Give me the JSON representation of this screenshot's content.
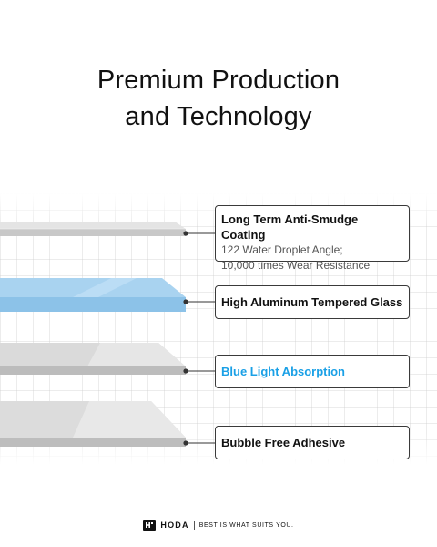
{
  "header": {
    "title_line1": "Premium Production",
    "title_line2": "and Technology"
  },
  "layers": [
    {
      "id": "anti-smudge",
      "title": "Long Term Anti-Smudge Coating",
      "details": [
        "122  Water Droplet Angle;",
        "10,000 times Wear Resistance"
      ],
      "color": "#d6d6d6"
    },
    {
      "id": "glass",
      "title": "High Aluminum Tempered Glass",
      "color": "#a9d3f0"
    },
    {
      "id": "blue-light",
      "title": "Blue Light Absorption",
      "title_color": "#1aa0e6",
      "color": "#d4d4d4"
    },
    {
      "id": "adhesive",
      "title": "Bubble Free Adhesive",
      "color": "#d9d9d9"
    }
  ],
  "footer": {
    "brand": "HODA",
    "tagline": "Best is what suits you."
  }
}
